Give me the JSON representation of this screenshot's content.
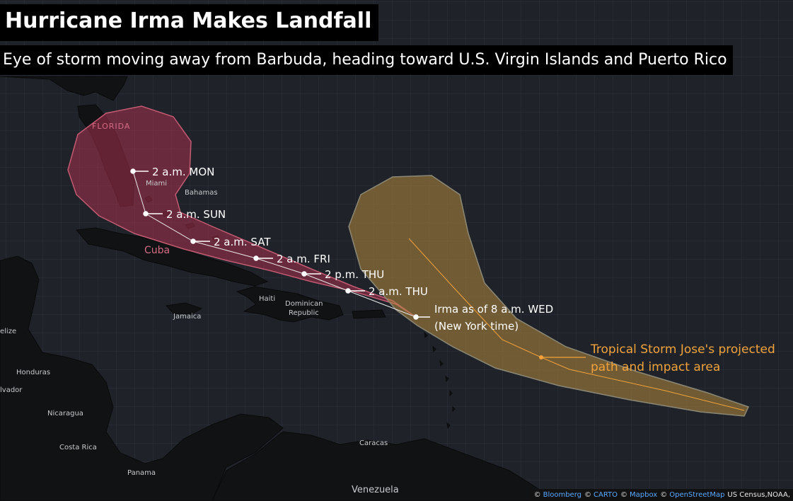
{
  "title": "Hurricane Irma Makes Landfall",
  "subtitle": "Eye of storm moving away from Barbuda, heading toward U.S. Virgin Islands and Puerto Rico",
  "irma_track": {
    "points": [
      {
        "label": "2 a.m. MON"
      },
      {
        "label": "2 a.m. SUN"
      },
      {
        "label": "2 a.m. SAT"
      },
      {
        "label": "2 a.m. FRI"
      },
      {
        "label": "2 p.m. THU"
      },
      {
        "label": "2 a.m. THU"
      }
    ],
    "current": {
      "line1": "Irma as of 8 a.m. WED",
      "line2": "(New York time)"
    }
  },
  "jose": {
    "line1": "Tropical Storm Jose's projected",
    "line2": "path and impact area"
  },
  "places": {
    "florida": "FLORIDA",
    "miami": "Miami",
    "bahamas": "Bahamas",
    "cuba": "Cuba",
    "haiti": "Haiti",
    "dominican_republic_1": "Dominican",
    "dominican_republic_2": "Republic",
    "jamaica": "Jamaica",
    "belize": "elize",
    "honduras": "Honduras",
    "el_salvador": "lvador",
    "nicaragua": "Nicaragua",
    "costa_rica": "Costa Rica",
    "panama": "Panama",
    "caracas": "Caracas",
    "venezuela": "Venezuela"
  },
  "attribution": {
    "copyright_symbol": "©",
    "sources": [
      "Bloomberg",
      "CARTO",
      "Mapbox",
      "OpenStreetMap"
    ],
    "rest": "US Census,NOAA,"
  },
  "colors": {
    "background": "#1f2329",
    "land": "#111214",
    "irma_cone": "#a8324f",
    "jose_cone": "#b58a3e",
    "jose_line": "#f3a23a",
    "label_box": "#000000"
  }
}
